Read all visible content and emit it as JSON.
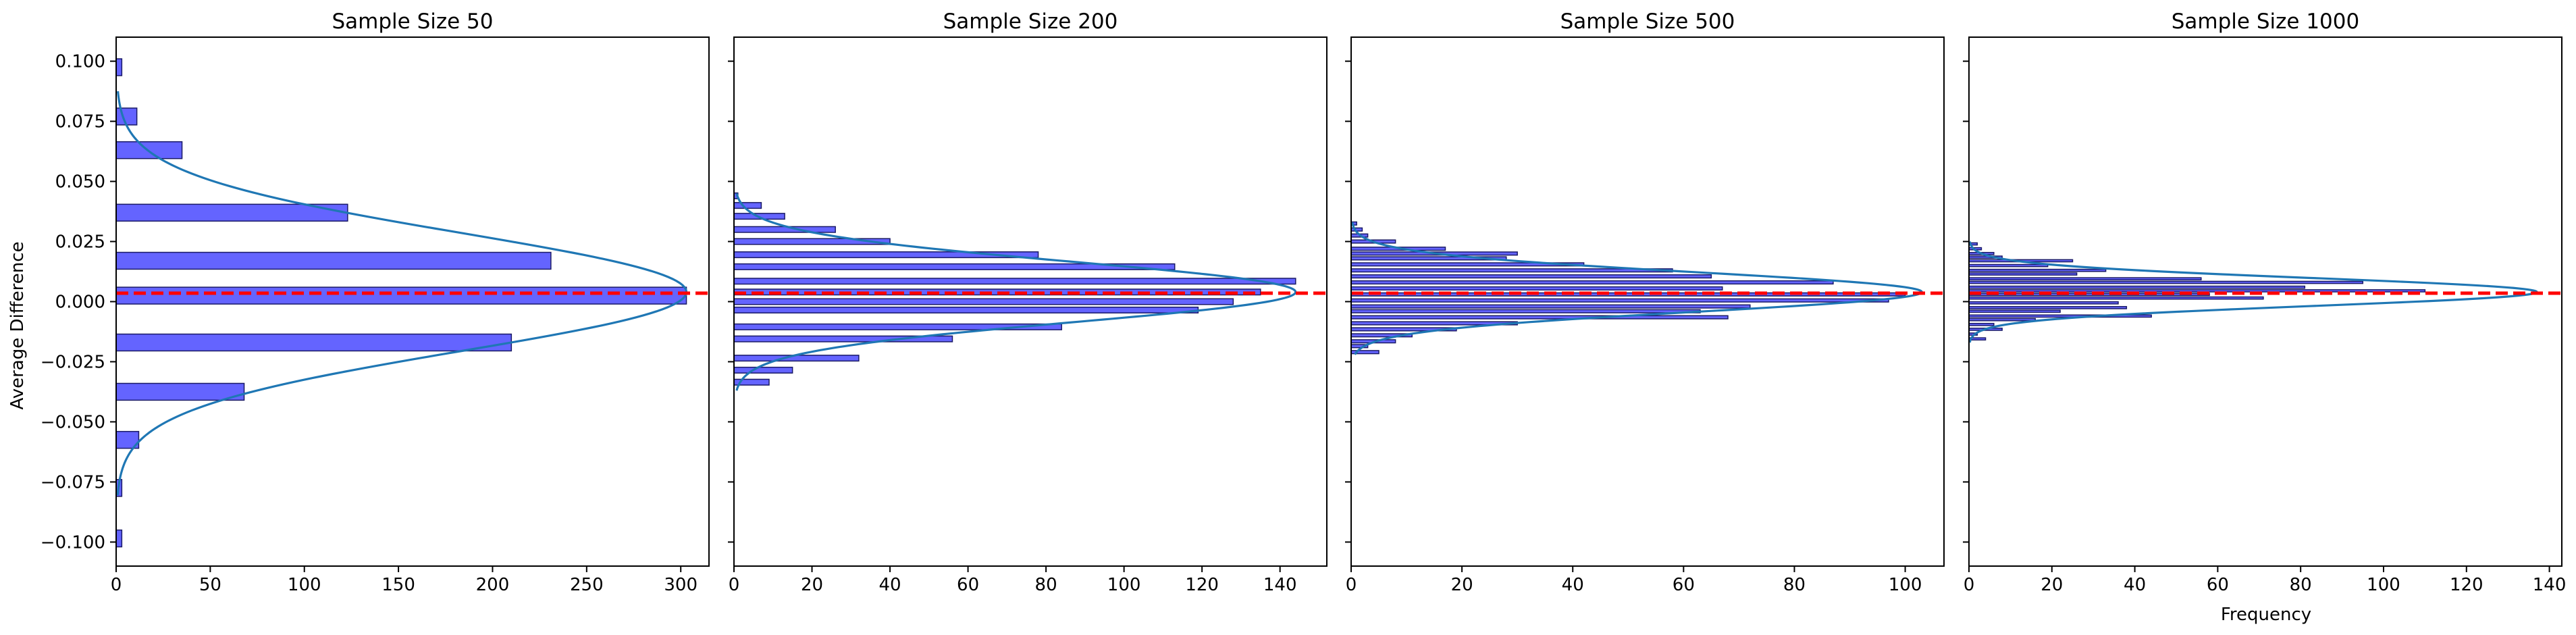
{
  "figure": {
    "ylabel": "Average Difference",
    "xlabel": "Frequency"
  },
  "chart_data": [
    {
      "type": "bar",
      "orientation": "horizontal",
      "title": "Sample Size 50",
      "xlabel": "",
      "ylabel": "Average Difference",
      "xlim": [
        0,
        315
      ],
      "ylim": [
        -0.11,
        0.11
      ],
      "xticks": [
        0,
        50,
        100,
        150,
        200,
        250,
        300
      ],
      "yticks": [
        -0.1,
        -0.075,
        -0.05,
        -0.025,
        0.0,
        0.025,
        0.05,
        0.075,
        0.1
      ],
      "ytick_labels": [
        "−0.100",
        "−0.075",
        "−0.050",
        "−0.025",
        "0.000",
        "0.025",
        "0.050",
        "0.075",
        "0.100"
      ],
      "bin_width": 0.007,
      "bins": [
        {
          "center": -0.0985,
          "count": 3
        },
        {
          "center": -0.0775,
          "count": 3
        },
        {
          "center": -0.0575,
          "count": 12
        },
        {
          "center": -0.0375,
          "count": 68
        },
        {
          "center": -0.017,
          "count": 210
        },
        {
          "center": 0.0025,
          "count": 303
        },
        {
          "center": 0.017,
          "count": 231
        },
        {
          "center": 0.037,
          "count": 123
        },
        {
          "center": 0.063,
          "count": 35
        },
        {
          "center": 0.077,
          "count": 11
        },
        {
          "center": 0.0975,
          "count": 3
        }
      ],
      "kde": {
        "mean": 0.004,
        "sd": 0.0245,
        "peak": 303,
        "range": [
          -0.0805,
          0.0875
        ]
      },
      "reference_line": 0.0035
    },
    {
      "type": "bar",
      "orientation": "horizontal",
      "title": "Sample Size 200",
      "xlabel": "",
      "ylabel": "",
      "xlim": [
        0,
        152
      ],
      "ylim": [
        -0.11,
        0.11
      ],
      "xticks": [
        0,
        20,
        40,
        60,
        80,
        100,
        120,
        140
      ],
      "bin_width": 0.0024,
      "bins": [
        {
          "center": -0.0335,
          "count": 9
        },
        {
          "center": -0.0285,
          "count": 15
        },
        {
          "center": -0.0235,
          "count": 32
        },
        {
          "center": -0.0155,
          "count": 56
        },
        {
          "center": -0.0105,
          "count": 84
        },
        {
          "center": -0.0035,
          "count": 119
        },
        {
          "center": 0.0,
          "count": 128
        },
        {
          "center": 0.004,
          "count": 135
        },
        {
          "center": 0.0085,
          "count": 144
        },
        {
          "center": 0.0145,
          "count": 113
        },
        {
          "center": 0.0195,
          "count": 78
        },
        {
          "center": 0.025,
          "count": 40
        },
        {
          "center": 0.03,
          "count": 26
        },
        {
          "center": 0.0355,
          "count": 13
        },
        {
          "center": 0.04,
          "count": 7
        },
        {
          "center": 0.044,
          "count": 1
        }
      ],
      "kde": {
        "mean": 0.004,
        "sd": 0.0125,
        "peak": 144,
        "range": [
          -0.037,
          0.045
        ]
      },
      "reference_line": 0.0035
    },
    {
      "type": "bar",
      "orientation": "horizontal",
      "title": "Sample Size 500",
      "xlabel": "",
      "ylabel": "",
      "xlim": [
        0,
        107
      ],
      "ylim": [
        -0.11,
        0.11
      ],
      "xticks": [
        0,
        20,
        40,
        60,
        80,
        100
      ],
      "bin_width": 0.0013,
      "bins": [
        {
          "center": -0.021,
          "count": 5
        },
        {
          "center": -0.0185,
          "count": 3
        },
        {
          "center": -0.0165,
          "count": 8
        },
        {
          "center": -0.014,
          "count": 11
        },
        {
          "center": -0.0115,
          "count": 19
        },
        {
          "center": -0.009,
          "count": 30
        },
        {
          "center": -0.0065,
          "count": 68
        },
        {
          "center": -0.004,
          "count": 63
        },
        {
          "center": -0.002,
          "count": 72
        },
        {
          "center": 0.0005,
          "count": 97
        },
        {
          "center": 0.003,
          "count": 100
        },
        {
          "center": 0.0055,
          "count": 67
        },
        {
          "center": 0.008,
          "count": 87
        },
        {
          "center": 0.0105,
          "count": 65
        },
        {
          "center": 0.013,
          "count": 58
        },
        {
          "center": 0.0155,
          "count": 42
        },
        {
          "center": 0.018,
          "count": 28
        },
        {
          "center": 0.02,
          "count": 30
        },
        {
          "center": 0.022,
          "count": 17
        },
        {
          "center": 0.025,
          "count": 8
        },
        {
          "center": 0.0275,
          "count": 3
        },
        {
          "center": 0.03,
          "count": 2
        },
        {
          "center": 0.0325,
          "count": 1
        }
      ],
      "kde": {
        "mean": 0.004,
        "sd": 0.0082,
        "peak": 103,
        "range": [
          -0.022,
          0.033
        ]
      },
      "reference_line": 0.0035
    },
    {
      "type": "bar",
      "orientation": "horizontal",
      "title": "Sample Size 1000",
      "xlabel": "Frequency",
      "ylabel": "",
      "xlim": [
        0,
        143
      ],
      "ylim": [
        -0.11,
        0.11
      ],
      "xticks": [
        0,
        20,
        40,
        60,
        80,
        100,
        120,
        140
      ],
      "bin_width": 0.0009,
      "bins": [
        {
          "center": -0.0155,
          "count": 4
        },
        {
          "center": -0.0135,
          "count": 2
        },
        {
          "center": -0.0115,
          "count": 8
        },
        {
          "center": -0.0095,
          "count": 6
        },
        {
          "center": -0.0075,
          "count": 16
        },
        {
          "center": -0.006,
          "count": 44
        },
        {
          "center": -0.004,
          "count": 22
        },
        {
          "center": -0.0025,
          "count": 38
        },
        {
          "center": -0.0005,
          "count": 36
        },
        {
          "center": 0.0015,
          "count": 71
        },
        {
          "center": 0.003,
          "count": 58
        },
        {
          "center": 0.0045,
          "count": 110
        },
        {
          "center": 0.006,
          "count": 81
        },
        {
          "center": 0.008,
          "count": 95
        },
        {
          "center": 0.0095,
          "count": 56
        },
        {
          "center": 0.0115,
          "count": 26
        },
        {
          "center": 0.013,
          "count": 33
        },
        {
          "center": 0.015,
          "count": 19
        },
        {
          "center": 0.017,
          "count": 25
        },
        {
          "center": 0.0185,
          "count": 8
        },
        {
          "center": 0.02,
          "count": 6
        },
        {
          "center": 0.022,
          "count": 3
        },
        {
          "center": 0.024,
          "count": 2
        }
      ],
      "kde": {
        "mean": 0.004,
        "sd": 0.0058,
        "peak": 137,
        "range": [
          -0.017,
          0.025
        ]
      },
      "reference_line": 0.0035
    }
  ],
  "colors": {
    "bar_fill": "#6464ff",
    "bar_edge": "#1a1a66",
    "kde_line": "#1f77b4",
    "reference_line": "#ff0000",
    "axes": "#000000"
  }
}
